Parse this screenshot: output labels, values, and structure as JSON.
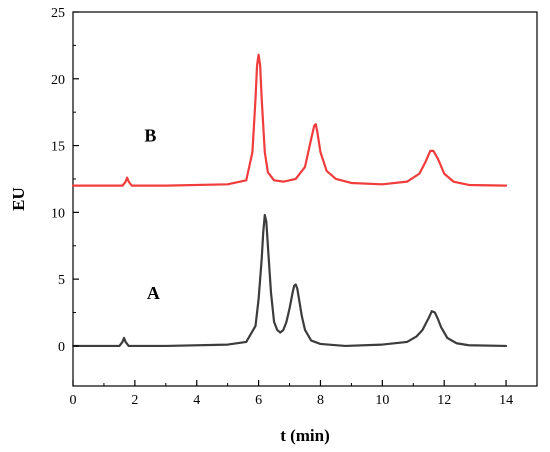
{
  "chart_data": {
    "type": "line",
    "xlabel": "t (min)",
    "ylabel": "EU",
    "xlim": [
      0,
      15
    ],
    "ylim": [
      -3,
      25
    ],
    "xticks": [
      0,
      2,
      4,
      6,
      8,
      10,
      12,
      14
    ],
    "yticks": [
      0,
      5,
      10,
      15,
      20,
      25
    ],
    "grid": false,
    "series": [
      {
        "name": "A",
        "color": "#3c3c3c",
        "label_position": [
          2.6,
          3.5
        ],
        "x": [
          0,
          1.5,
          1.6,
          1.65,
          1.7,
          1.8,
          3.0,
          5.0,
          5.6,
          5.9,
          6.0,
          6.1,
          6.15,
          6.2,
          6.25,
          6.3,
          6.4,
          6.5,
          6.6,
          6.7,
          6.8,
          6.9,
          7.0,
          7.1,
          7.15,
          7.2,
          7.25,
          7.3,
          7.4,
          7.5,
          7.7,
          8.0,
          8.8,
          10.0,
          10.8,
          11.1,
          11.3,
          11.5,
          11.6,
          11.7,
          11.8,
          11.9,
          12.1,
          12.4,
          12.8,
          14.0
        ],
        "y": [
          0,
          0,
          0.3,
          0.6,
          0.3,
          0,
          0,
          0.1,
          0.3,
          1.5,
          3.5,
          6.5,
          8.5,
          9.8,
          9.3,
          7.5,
          4.0,
          1.8,
          1.2,
          1.0,
          1.2,
          1.8,
          2.8,
          4.0,
          4.5,
          4.6,
          4.3,
          3.6,
          2.2,
          1.2,
          0.4,
          0.15,
          0,
          0.1,
          0.3,
          0.7,
          1.2,
          2.1,
          2.6,
          2.5,
          2.0,
          1.4,
          0.6,
          0.2,
          0.05,
          0
        ]
      },
      {
        "name": "B",
        "color": "#f03c3c",
        "label_position": [
          2.5,
          15.3
        ],
        "x": [
          0,
          1.6,
          1.7,
          1.75,
          1.8,
          1.9,
          3.0,
          5.0,
          5.6,
          5.8,
          5.9,
          5.95,
          6.0,
          6.05,
          6.1,
          6.2,
          6.3,
          6.5,
          6.8,
          7.2,
          7.5,
          7.7,
          7.8,
          7.85,
          7.9,
          8.0,
          8.2,
          8.5,
          9.0,
          10.0,
          10.8,
          11.2,
          11.4,
          11.55,
          11.65,
          11.8,
          12.0,
          12.3,
          12.8,
          14.0
        ],
        "y": [
          12,
          12,
          12.3,
          12.6,
          12.3,
          12,
          12,
          12.1,
          12.4,
          14.5,
          18.5,
          21.0,
          21.8,
          21.0,
          18.5,
          14.5,
          13.0,
          12.4,
          12.3,
          12.5,
          13.4,
          15.5,
          16.5,
          16.6,
          16.0,
          14.5,
          13.1,
          12.5,
          12.2,
          12.1,
          12.3,
          12.9,
          13.8,
          14.6,
          14.6,
          14.0,
          12.9,
          12.3,
          12.05,
          12
        ]
      }
    ]
  }
}
